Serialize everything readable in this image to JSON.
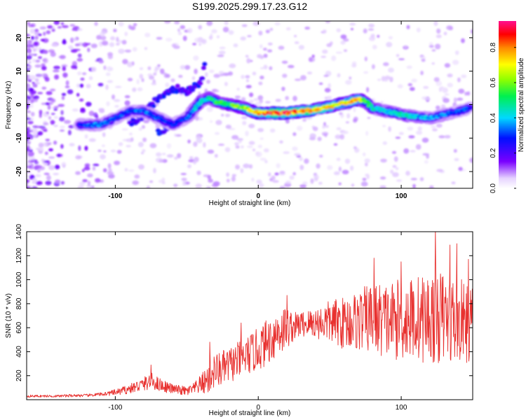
{
  "title": "S199.2025.299.17.23.G12",
  "chart_data": [
    {
      "type": "heatmap",
      "xlabel": "Height of straight line (km)",
      "ylabel": "Frequency (Hz)",
      "xlim": [
        -162,
        150
      ],
      "ylim": [
        -25,
        25
      ],
      "x_ticks": [
        -100,
        0,
        100
      ],
      "x_tick_labels": [
        "-100",
        "0",
        "100"
      ],
      "y_ticks": [
        -20,
        -10,
        0,
        10,
        20
      ],
      "y_tick_labels": [
        "-20",
        "-10",
        "0",
        "10",
        "20"
      ],
      "colorbar": {
        "label": "Normalized spectral amplitude",
        "range": [
          0,
          0.95
        ],
        "ticks": [
          0.0,
          0.2,
          0.4,
          0.6,
          0.8
        ],
        "tick_labels": [
          "0.0",
          "0.2",
          "0.4",
          "0.6",
          "0.8"
        ]
      },
      "ridge": {
        "name": "dominant frequency ridge",
        "x": [
          -125,
          -110,
          -100,
          -90,
          -80,
          -70,
          -60,
          -50,
          -40,
          -35,
          -30,
          -20,
          -10,
          0,
          10,
          20,
          30,
          40,
          50,
          60,
          70,
          75,
          80,
          90,
          100,
          110,
          120,
          130,
          140,
          148
        ],
        "y": [
          -6,
          -6,
          -4,
          -2,
          -2,
          -4,
          -6,
          -4,
          1,
          2,
          1,
          0,
          -1,
          -2.5,
          -2.5,
          -2.5,
          -2,
          -1.5,
          -0.5,
          0.5,
          1.5,
          1,
          -1,
          -2,
          -3,
          -3.5,
          -4,
          -3,
          -2,
          -1
        ],
        "amplitude": [
          0.3,
          0.35,
          0.3,
          0.3,
          0.35,
          0.3,
          0.3,
          0.3,
          0.45,
          0.45,
          0.5,
          0.55,
          0.6,
          0.75,
          0.85,
          0.85,
          0.8,
          0.75,
          0.7,
          0.65,
          0.75,
          0.55,
          0.45,
          0.4,
          0.45,
          0.4,
          0.35,
          0.35,
          0.3,
          0.3
        ]
      },
      "secondary_structures": [
        {
          "name": "upper branch",
          "x": [
            -90,
            -80,
            -70,
            -60,
            -50,
            -40,
            -37
          ],
          "y": [
            -6,
            -3,
            2,
            5,
            4,
            7,
            12
          ],
          "amplitude": 0.25
        },
        {
          "name": "lower branch",
          "x": [
            -70,
            -60,
            -50
          ],
          "y": [
            -8,
            -6,
            -3
          ],
          "amplitude": 0.3
        }
      ]
    },
    {
      "type": "line",
      "xlabel": "Height of straight line (km)",
      "ylabel": "SNR (10 * v/v)",
      "xlim": [
        -162,
        150
      ],
      "ylim": [
        0,
        1400
      ],
      "x_ticks": [
        -100,
        0,
        100
      ],
      "x_tick_labels": [
        "-100",
        "0",
        "100"
      ],
      "y_ticks": [
        200,
        400,
        600,
        800,
        1000,
        1200,
        1400
      ],
      "y_tick_labels": [
        "200",
        "400",
        "600",
        "800",
        "1000",
        "1200",
        "1400"
      ],
      "color": "#e8312f",
      "series": [
        {
          "name": "SNR",
          "x": [
            -162,
            -150,
            -140,
            -130,
            -120,
            -110,
            -100,
            -90,
            -80,
            -75,
            -70,
            -60,
            -50,
            -45,
            -40,
            -35,
            -32,
            -25,
            -20,
            -10,
            0,
            10,
            15,
            20,
            25,
            30,
            40,
            50,
            60,
            70,
            80,
            90,
            100,
            110,
            120,
            125,
            130,
            140,
            145,
            150
          ],
          "base": [
            30,
            30,
            30,
            35,
            35,
            45,
            60,
            90,
            130,
            160,
            130,
            90,
            70,
            90,
            130,
            170,
            230,
            260,
            290,
            350,
            420,
            520,
            580,
            600,
            610,
            630,
            640,
            650,
            640,
            660,
            680,
            660,
            670,
            680,
            680,
            700,
            680,
            660,
            640,
            640
          ],
          "noise": [
            10,
            10,
            10,
            12,
            12,
            15,
            25,
            40,
            60,
            70,
            60,
            40,
            40,
            50,
            80,
            130,
            150,
            150,
            150,
            160,
            180,
            200,
            220,
            180,
            120,
            110,
            130,
            180,
            220,
            260,
            300,
            320,
            340,
            360,
            380,
            400,
            380,
            360,
            340,
            320
          ],
          "peaks": [
            {
              "x": -75,
              "y": 290
            },
            {
              "x": -34,
              "y": 480
            },
            {
              "x": -12,
              "y": 640
            },
            {
              "x": 20,
              "y": 870
            },
            {
              "x": 81,
              "y": 1180
            },
            {
              "x": 100,
              "y": 1150
            },
            {
              "x": 124,
              "y": 1420
            },
            {
              "x": 134,
              "y": 1290
            },
            {
              "x": 139,
              "y": 1300
            },
            {
              "x": 147,
              "y": 1170
            }
          ]
        }
      ]
    }
  ]
}
